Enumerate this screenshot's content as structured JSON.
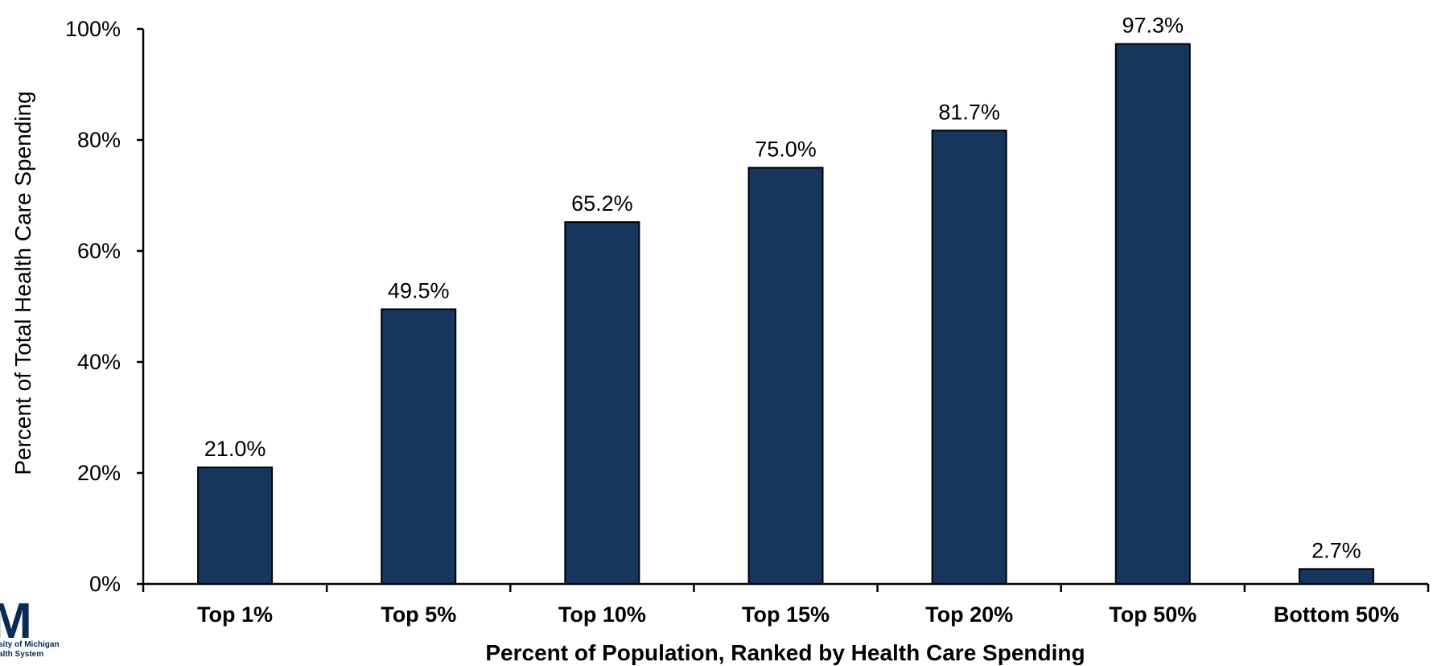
{
  "chart_data": {
    "type": "bar",
    "categories": [
      "Top 1%",
      "Top 5%",
      "Top 10%",
      "Top 15%",
      "Top 20%",
      "Top 50%",
      "Bottom 50%"
    ],
    "values": [
      21.0,
      49.5,
      65.2,
      75.0,
      81.7,
      97.3,
      2.7
    ],
    "data_labels": [
      "21.0%",
      "49.5%",
      "65.2%",
      "75.0%",
      "81.7%",
      "97.3%",
      "2.7%"
    ],
    "ylim": [
      0,
      100
    ],
    "yticks": [
      0,
      20,
      40,
      60,
      80,
      100
    ],
    "ytick_labels": [
      "0%",
      "20%",
      "40%",
      "60%",
      "80%",
      "100%"
    ],
    "xlabel": "Percent of Population, Ranked by Health Care Spending",
    "ylabel": "Percent of Total Health Care Spending",
    "grid": false,
    "legend": "none",
    "bar_color": "#17365d"
  },
  "logo": {
    "name": "university-of-michigan-health-system-logo",
    "mark": "M",
    "line1": "sity of Michigan",
    "line2": "alth System",
    "color": "#0b2a55"
  }
}
